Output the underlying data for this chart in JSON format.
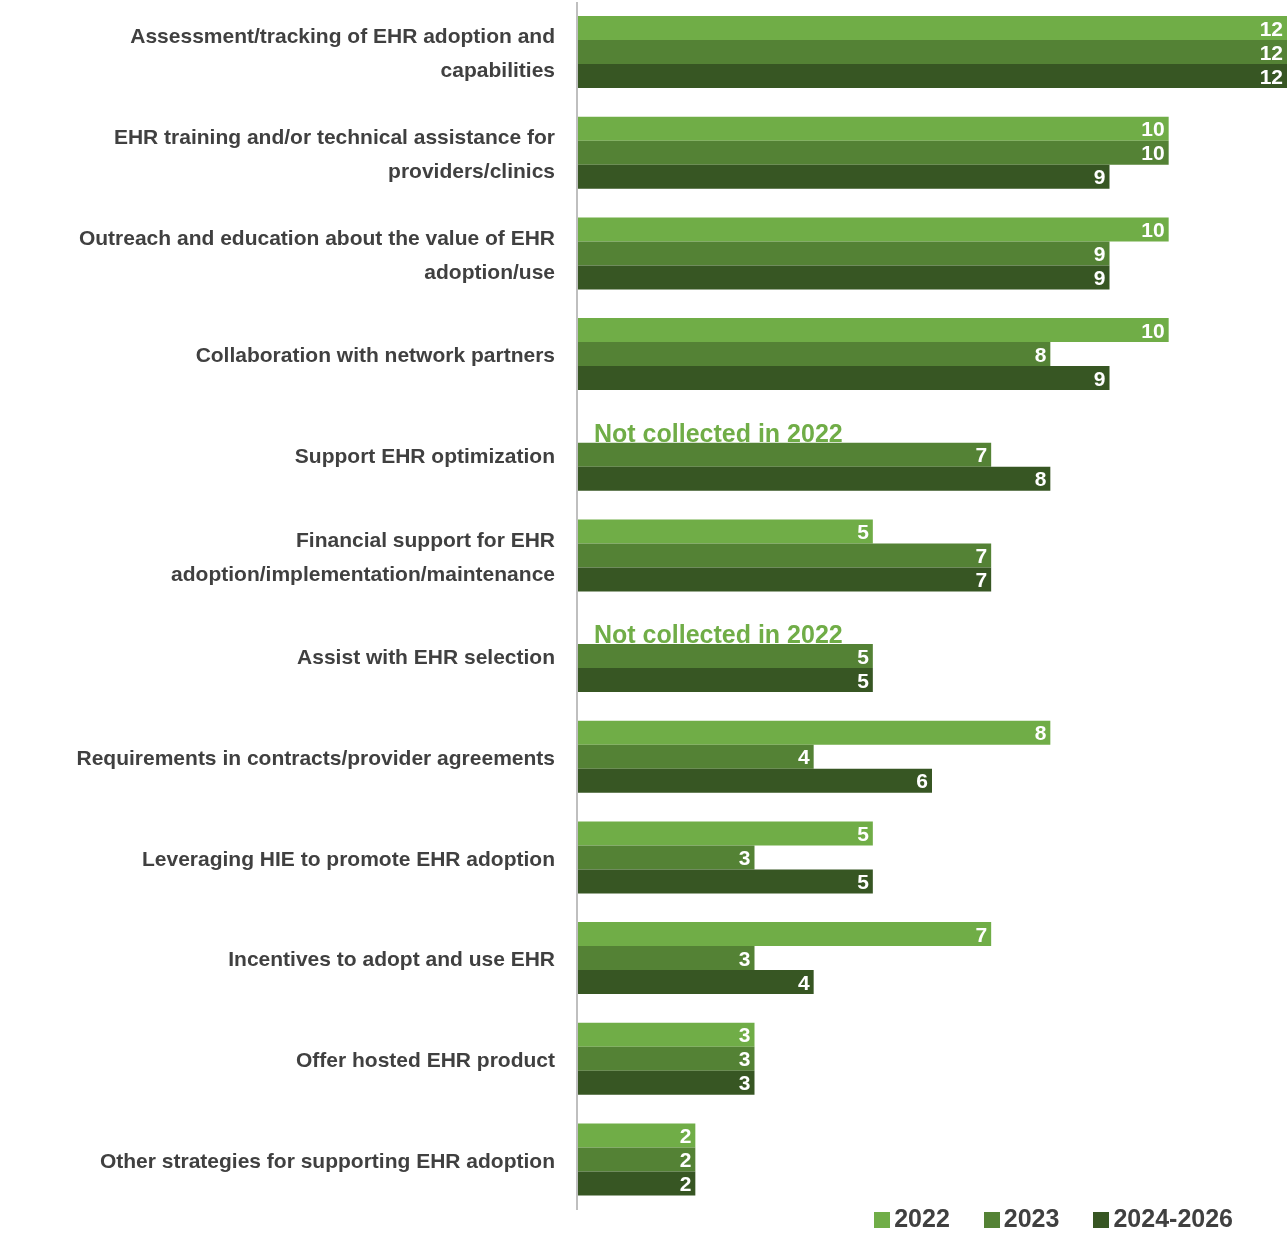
{
  "chart_data": {
    "type": "bar",
    "orientation": "horizontal",
    "categories": [
      "Assessment/tracking of EHR adoption and capabilities",
      "EHR training and/or technical assistance for providers/clinics",
      "Outreach and education about the value of EHR adoption/use",
      "Collaboration with network partners",
      "Support EHR optimization",
      "Financial support for EHR adoption/implementation/maintenance",
      "Assist with EHR selection",
      "Requirements in contracts/provider agreements",
      "Leveraging HIE to promote EHR adoption",
      "Incentives to adopt and use EHR",
      "Offer hosted EHR product",
      "Other strategies for supporting EHR adoption"
    ],
    "series": [
      {
        "name": "2022",
        "color": "#70ad47",
        "values": [
          12,
          10,
          10,
          10,
          null,
          5,
          null,
          8,
          5,
          7,
          3,
          2
        ]
      },
      {
        "name": "2023",
        "color": "#548235",
        "values": [
          12,
          10,
          9,
          8,
          7,
          7,
          5,
          4,
          3,
          3,
          3,
          2
        ]
      },
      {
        "name": "2024-2026",
        "color": "#375623",
        "values": [
          12,
          9,
          9,
          9,
          8,
          7,
          5,
          6,
          5,
          4,
          3,
          2
        ]
      }
    ],
    "xlim": [
      0,
      12
    ],
    "tick_labels": "y",
    "data_labels": true,
    "grid": false,
    "legend": "bottom right",
    "annotations": [
      {
        "text": "Not collected in 2022",
        "x": 0,
        "y": "Support EHR optimization"
      },
      {
        "text": "Not collected in 2022",
        "x": 0,
        "y": "Assist with EHR selection"
      }
    ]
  }
}
